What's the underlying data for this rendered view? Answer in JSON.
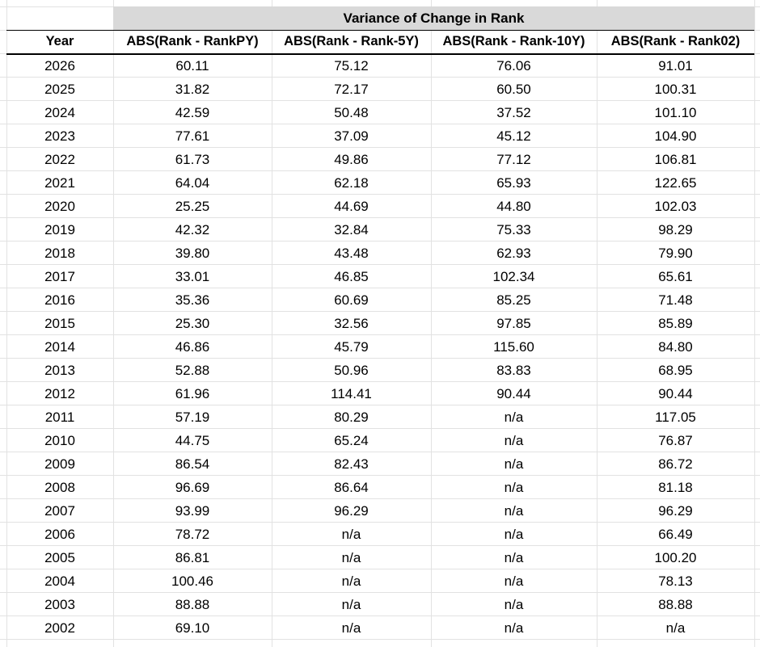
{
  "table": {
    "title": "Variance of Change in Rank",
    "header": [
      "Year",
      "ABS(Rank - RankPY)",
      "ABS(Rank - Rank-5Y)",
      "ABS(Rank - Rank-10Y)",
      "ABS(Rank - Rank02)"
    ],
    "rows": [
      [
        "2026",
        "60.11",
        "75.12",
        "76.06",
        "91.01"
      ],
      [
        "2025",
        "31.82",
        "72.17",
        "60.50",
        "100.31"
      ],
      [
        "2024",
        "42.59",
        "50.48",
        "37.52",
        "101.10"
      ],
      [
        "2023",
        "77.61",
        "37.09",
        "45.12",
        "104.90"
      ],
      [
        "2022",
        "61.73",
        "49.86",
        "77.12",
        "106.81"
      ],
      [
        "2021",
        "64.04",
        "62.18",
        "65.93",
        "122.65"
      ],
      [
        "2020",
        "25.25",
        "44.69",
        "44.80",
        "102.03"
      ],
      [
        "2019",
        "42.32",
        "32.84",
        "75.33",
        "98.29"
      ],
      [
        "2018",
        "39.80",
        "43.48",
        "62.93",
        "79.90"
      ],
      [
        "2017",
        "33.01",
        "46.85",
        "102.34",
        "65.61"
      ],
      [
        "2016",
        "35.36",
        "60.69",
        "85.25",
        "71.48"
      ],
      [
        "2015",
        "25.30",
        "32.56",
        "97.85",
        "85.89"
      ],
      [
        "2014",
        "46.86",
        "45.79",
        "115.60",
        "84.80"
      ],
      [
        "2013",
        "52.88",
        "50.96",
        "83.83",
        "68.95"
      ],
      [
        "2012",
        "61.96",
        "114.41",
        "90.44",
        "90.44"
      ],
      [
        "2011",
        "57.19",
        "80.29",
        "n/a",
        "117.05"
      ],
      [
        "2010",
        "44.75",
        "65.24",
        "n/a",
        "76.87"
      ],
      [
        "2009",
        "86.54",
        "82.43",
        "n/a",
        "86.72"
      ],
      [
        "2008",
        "96.69",
        "86.64",
        "n/a",
        "81.18"
      ],
      [
        "2007",
        "93.99",
        "96.29",
        "n/a",
        "96.29"
      ],
      [
        "2006",
        "78.72",
        "n/a",
        "n/a",
        "66.49"
      ],
      [
        "2005",
        "86.81",
        "n/a",
        "n/a",
        "100.20"
      ],
      [
        "2004",
        "100.46",
        "n/a",
        "n/a",
        "78.13"
      ],
      [
        "2003",
        "88.88",
        "n/a",
        "n/a",
        "88.88"
      ],
      [
        "2002",
        "69.10",
        "n/a",
        "n/a",
        "n/a"
      ]
    ]
  }
}
